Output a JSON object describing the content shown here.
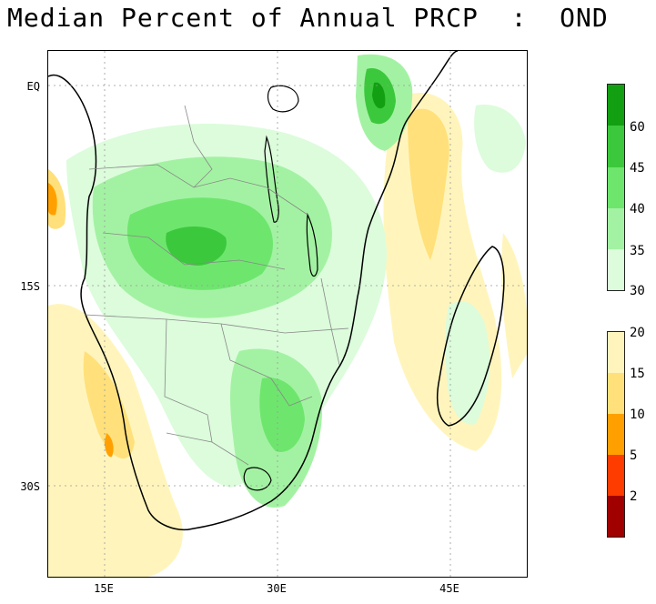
{
  "title": "Median Percent of Annual PRCP  :  OND",
  "map": {
    "lat_labels": [
      "EQ",
      "15S",
      "30S"
    ],
    "lon_labels": [
      "15E",
      "30E",
      "45E"
    ],
    "grid": "dotted"
  },
  "legend_green": {
    "colors": [
      "#12a012",
      "#3cc83c",
      "#6ee66e",
      "#a3f2a3",
      "#dcfcdc"
    ],
    "labels": [
      "60",
      "45",
      "40",
      "35",
      "30"
    ]
  },
  "legend_warm": {
    "colors": [
      "#fff5bc",
      "#ffe07a",
      "#ffa000",
      "#ff3c00",
      "#a00000"
    ],
    "labels": [
      "20",
      "15",
      "10",
      "5",
      "2"
    ]
  }
}
